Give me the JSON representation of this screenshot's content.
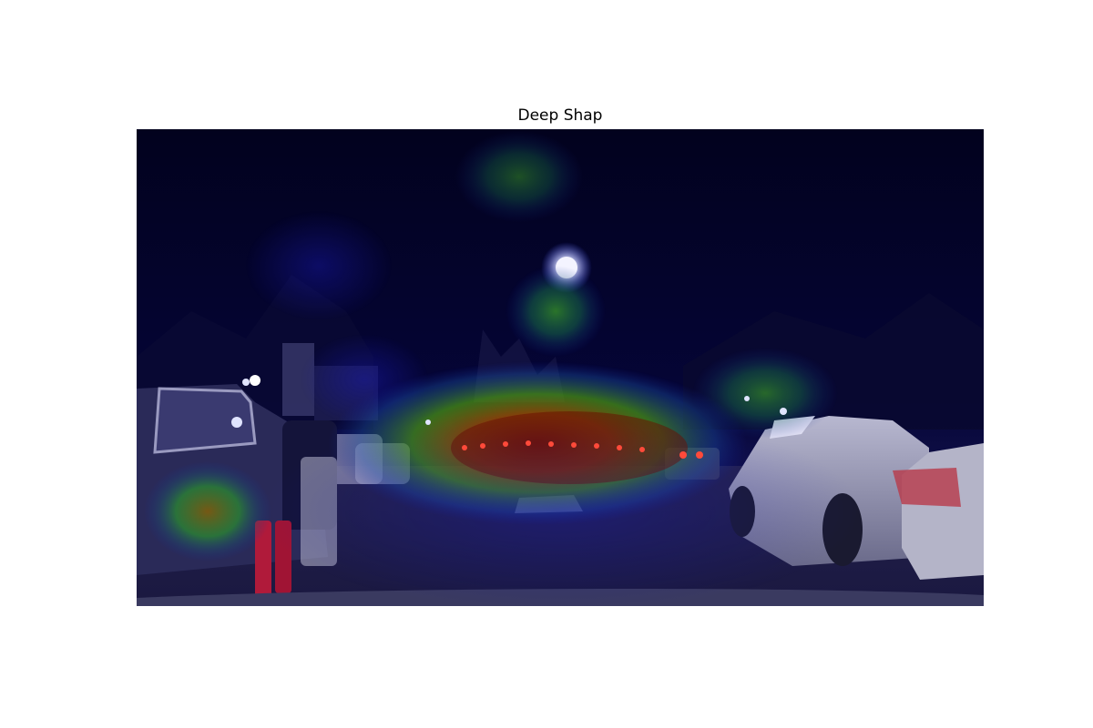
{
  "figure": {
    "title": "Deep Shap",
    "background": "#ffffff"
  },
  "image": {
    "scene": "night-street",
    "colormap": "jet",
    "colors": {
      "sky": "#03032a",
      "road": "#1e1d45",
      "heat_low": "#1010a0",
      "heat_mid": "#2a8a20",
      "heat_high": "#8a1a00",
      "car_silver": "#9a9ab8",
      "pants_red": "#b01a3a",
      "street_light": "#e8eaff"
    }
  }
}
